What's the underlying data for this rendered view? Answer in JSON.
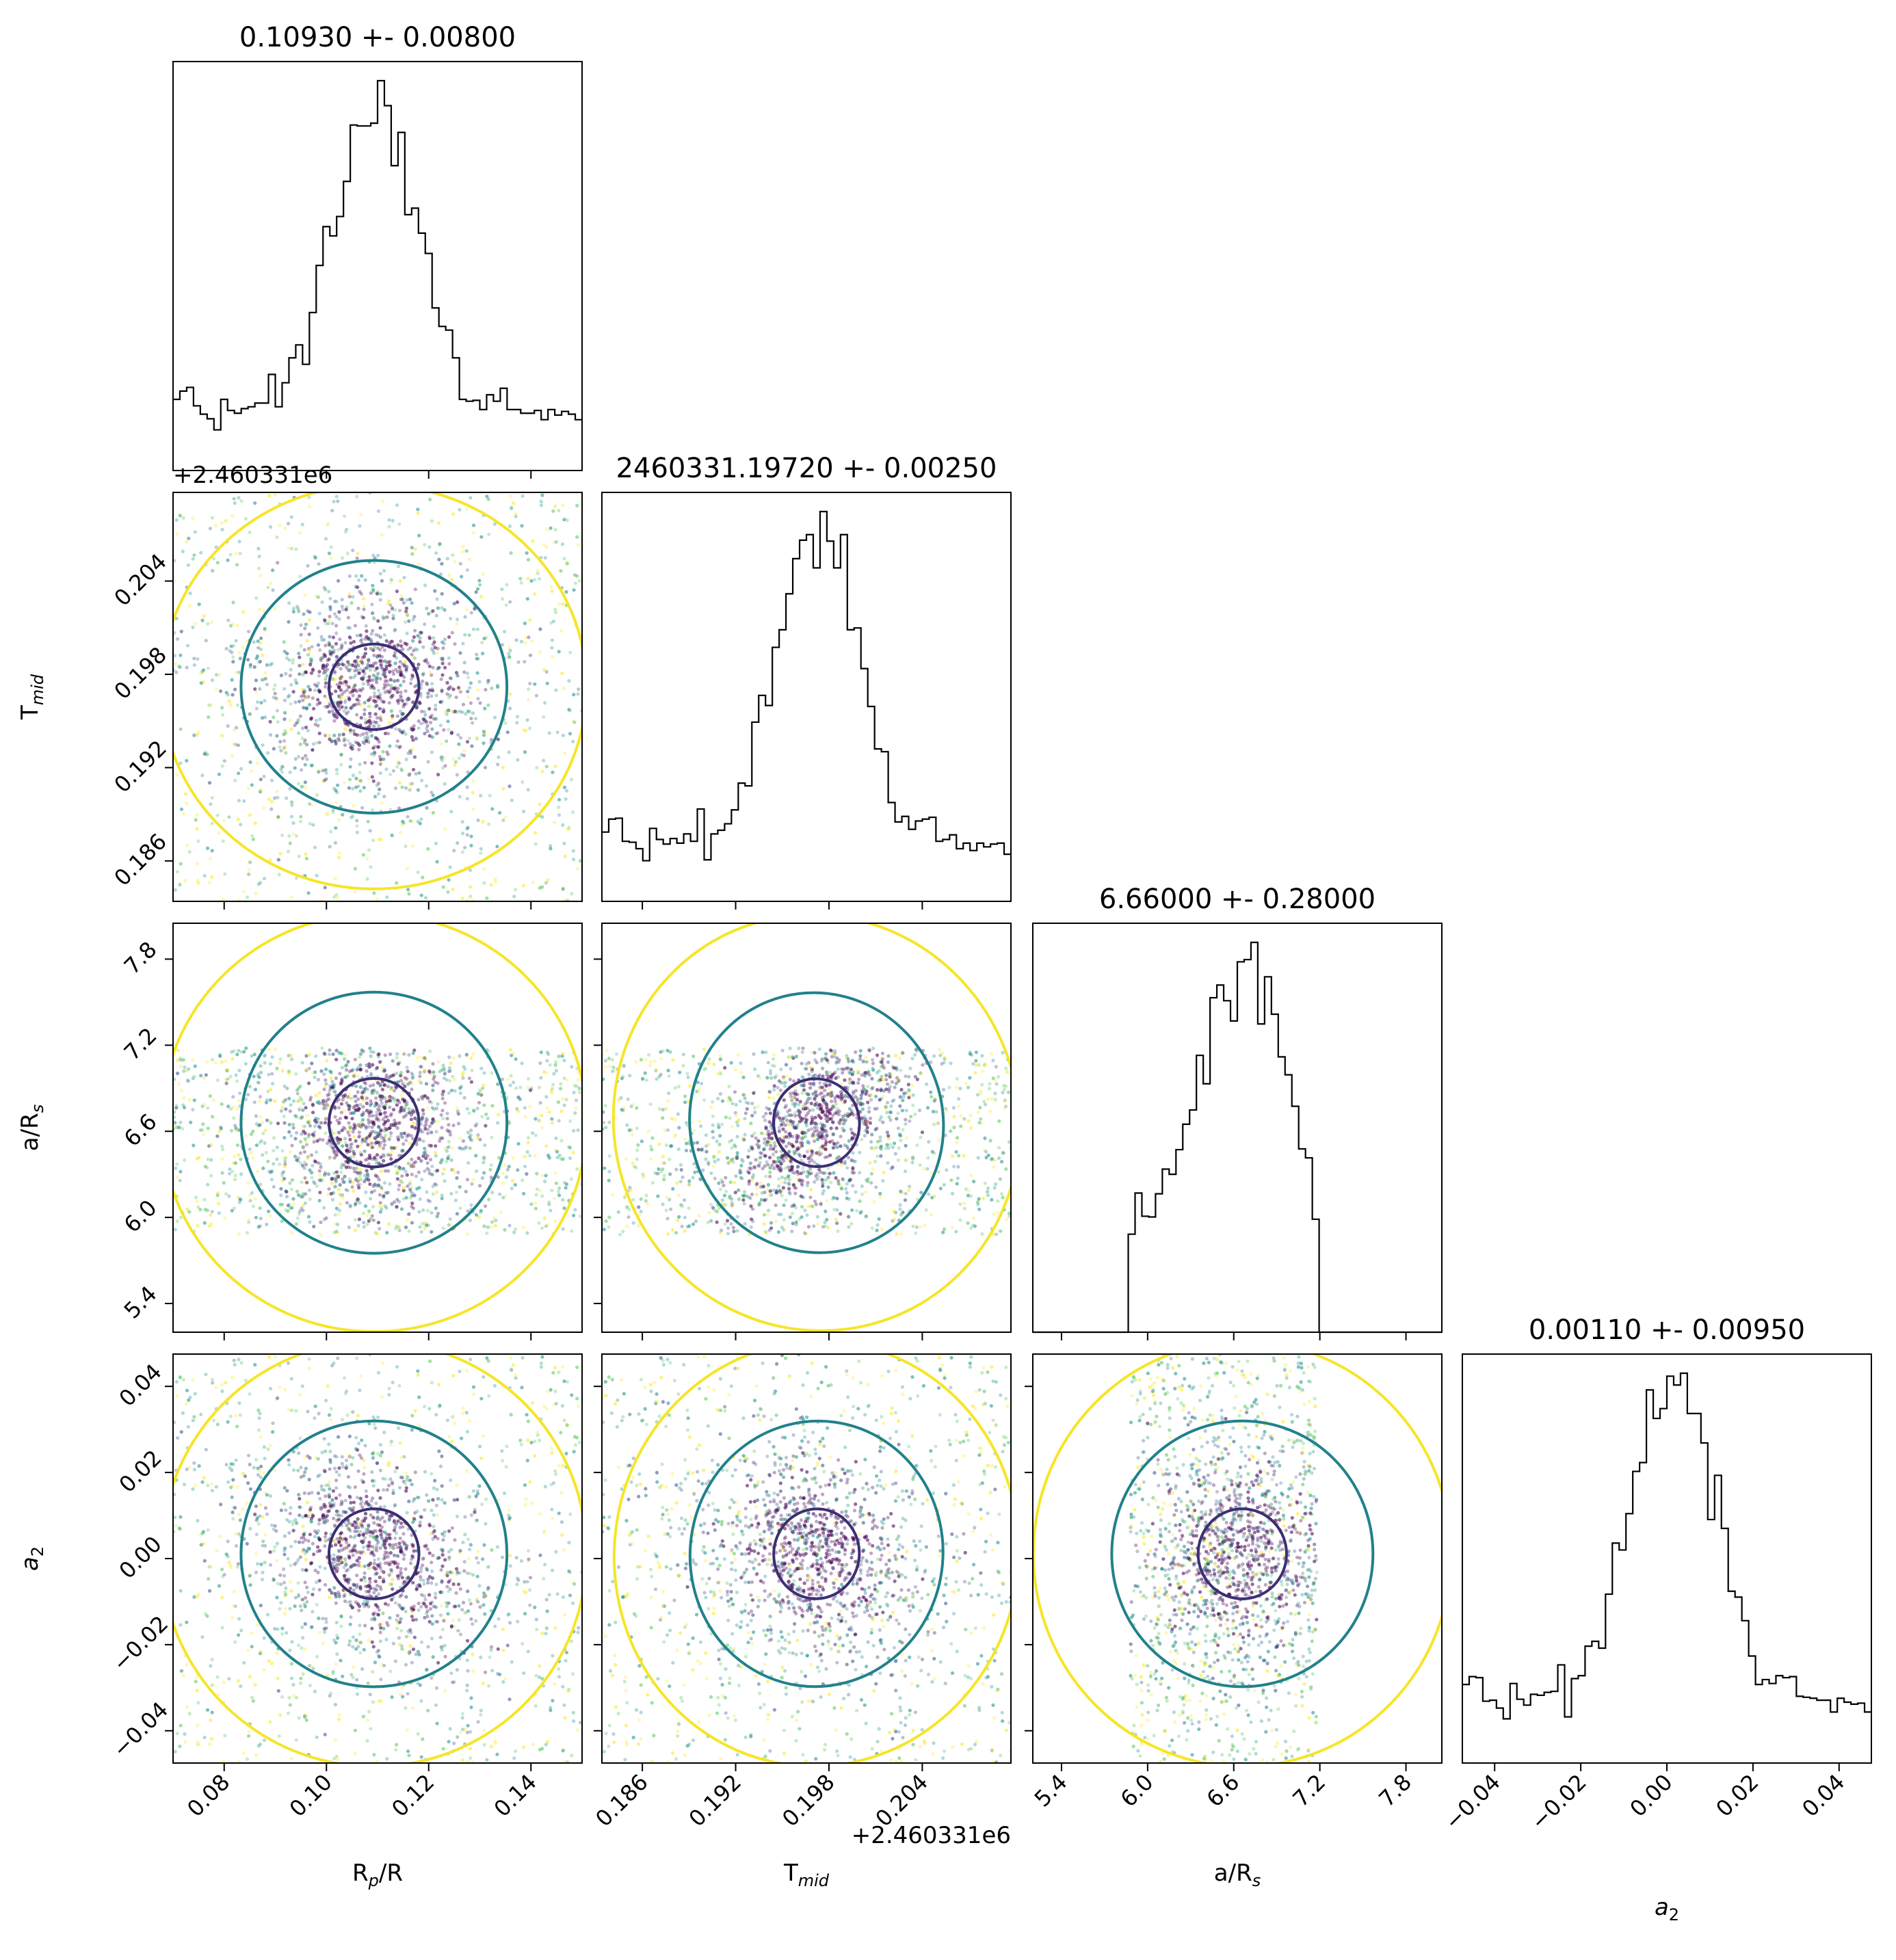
{
  "chart_data": {
    "type": "corner",
    "parameters": [
      {
        "key": "rp",
        "label": "R_p/R_s",
        "title": "0.10930 +- 0.00800",
        "range": [
          0.07,
          0.15
        ],
        "ticks": [
          "0.08",
          "0.10",
          "0.12",
          "0.14"
        ],
        "center": 0.1093,
        "sigma": 0.008
      },
      {
        "key": "tmid",
        "label": "T_mid",
        "title": "2460331.19720 +- 0.00250",
        "range": [
          0.1834,
          0.2097
        ],
        "ticks": [
          "0.186",
          "0.192",
          "0.198",
          "0.204"
        ],
        "center": 0.1972,
        "sigma": 0.0025,
        "offset_label": "+2.460331e6"
      },
      {
        "key": "ars",
        "label": "a/R_s",
        "title": "6.66000 +- 0.28000",
        "range": [
          5.2,
          8.05
        ],
        "ticks": [
          "5.4",
          "6.0",
          "6.6",
          "7.2",
          "7.8"
        ],
        "center": 6.66,
        "sigma": 0.28,
        "support": [
          5.88,
          7.18
        ]
      },
      {
        "key": "a2",
        "label": "a_2",
        "title": "0.00110 +- 0.00950",
        "range": [
          -0.0475,
          0.0475
        ],
        "ticks": [
          "−0.04",
          "−0.02",
          "0.00",
          "0.02",
          "0.04"
        ],
        "center": 0.0011,
        "sigma": 0.0095
      }
    ],
    "contour_levels": [
      "1-sigma",
      "2-sigma",
      "3-sigma"
    ],
    "contour_colors": [
      "#3b2f73",
      "#21818b",
      "#f6e528"
    ],
    "point_colors": [
      "#440154",
      "#3b528b",
      "#21918c",
      "#5ec962",
      "#fde725"
    ],
    "histogram_color": "#000000",
    "grid": false
  }
}
